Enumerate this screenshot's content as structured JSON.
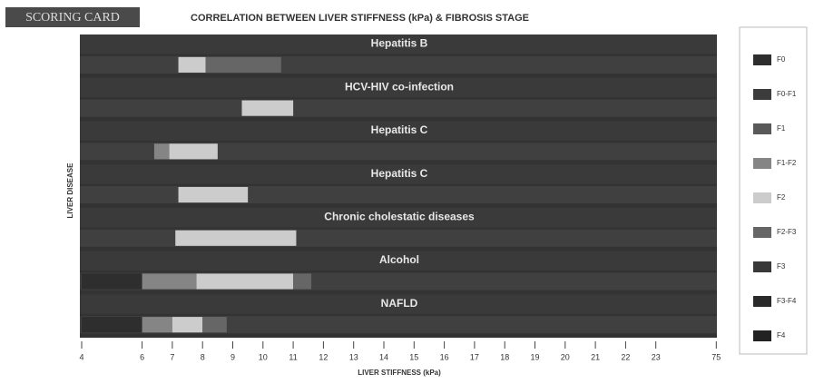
{
  "chart_data": {
    "type": "range-bar",
    "badge": "SCORING CARD",
    "title": "CORRELATION BETWEEN LIVER STIFFNESS (kPa) & FIBROSIS STAGE",
    "y_label": "LIVER DISEASE",
    "x_label": "LIVER STIFFNESS (kPa)",
    "xlim": [
      4,
      75
    ],
    "xticks": [
      4,
      6,
      7,
      8,
      9,
      10,
      11,
      12,
      13,
      14,
      15,
      16,
      17,
      18,
      19,
      20,
      21,
      22,
      23,
      75
    ],
    "legend": [
      {
        "name": "F0",
        "color": "#2e2e2e"
      },
      {
        "name": "F0-F1",
        "color": "#3c3c3c"
      },
      {
        "name": "F1",
        "color": "#595959"
      },
      {
        "name": "F1-F2",
        "color": "#858585"
      },
      {
        "name": "F2",
        "color": "#cccccc"
      },
      {
        "name": "F2-F3",
        "color": "#666666"
      },
      {
        "name": "F3",
        "color": "#383838"
      },
      {
        "name": "F3-F4",
        "color": "#2a2a2a"
      },
      {
        "name": "F4",
        "color": "#222222"
      }
    ],
    "series": [
      {
        "name": "Hepatitis B",
        "segments": [
          {
            "stage": "F2",
            "range": [
              7.2,
              8.1
            ]
          },
          {
            "stage": "F2-F3",
            "range": [
              8.1,
              10.6
            ]
          }
        ]
      },
      {
        "name": "HCV-HIV co-infection",
        "segments": [
          {
            "stage": "F2",
            "range": [
              9.3,
              11
            ]
          }
        ]
      },
      {
        "name": "Hepatitis C",
        "segments": [
          {
            "stage": "F1-F2",
            "range": [
              6.4,
              6.9
            ]
          },
          {
            "stage": "F2",
            "range": [
              6.9,
              8.5
            ]
          }
        ]
      },
      {
        "name": "Hepatitis C",
        "segments": [
          {
            "stage": "F2",
            "range": [
              7.2,
              9.5
            ]
          }
        ]
      },
      {
        "name": "Chronic cholestatic diseases",
        "segments": [
          {
            "stage": "F2",
            "range": [
              7.1,
              11.1
            ]
          }
        ]
      },
      {
        "name": "Alcohol",
        "segments": [
          {
            "stage": "F0",
            "range": [
              4,
              6
            ]
          },
          {
            "stage": "F1-F2",
            "range": [
              6,
              7.8
            ]
          },
          {
            "stage": "F2",
            "range": [
              7.8,
              11
            ]
          },
          {
            "stage": "F2-F3",
            "range": [
              11,
              11.6
            ]
          }
        ]
      },
      {
        "name": "NAFLD",
        "segments": [
          {
            "stage": "F0",
            "range": [
              4,
              6
            ]
          },
          {
            "stage": "F1-F2",
            "range": [
              6,
              7
            ]
          },
          {
            "stage": "F2",
            "range": [
              7,
              8
            ]
          },
          {
            "stage": "F2-F3",
            "range": [
              8,
              8.8
            ]
          }
        ]
      }
    ]
  }
}
